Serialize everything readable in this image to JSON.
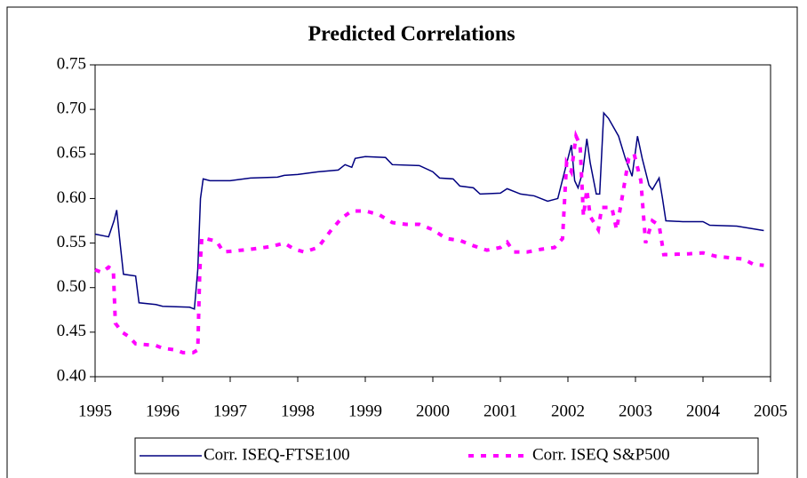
{
  "chart_data": {
    "type": "line",
    "title": "Predicted Correlations",
    "xlim": [
      1995,
      2005
    ],
    "xticks": [
      1995,
      1996,
      1997,
      1998,
      1999,
      2000,
      2001,
      2002,
      2003,
      2004,
      2005
    ],
    "ylim": [
      0.4,
      0.75
    ],
    "yticks": [
      {
        "value": 0.4,
        "label": "0.40"
      },
      0.45,
      {
        "value": 0.5,
        "label": "0.50"
      },
      0.55,
      {
        "value": 0.6,
        "label": "0.60"
      },
      0.65,
      {
        "value": 0.7,
        "label": "0.70"
      },
      0.75
    ],
    "legend": "bottom",
    "series": [
      {
        "name": "Corr. ISEQ-FTSE100",
        "color": "#000080",
        "dash": false,
        "x": [
          1995.0,
          1995.2,
          1995.28,
          1995.32,
          1995.37,
          1995.42,
          1995.6,
          1995.65,
          1995.9,
          1996.0,
          1996.4,
          1996.47,
          1996.52,
          1996.56,
          1996.6,
          1996.7,
          1997.0,
          1997.3,
          1997.7,
          1997.8,
          1998.0,
          1998.3,
          1998.6,
          1998.7,
          1998.8,
          1998.85,
          1999.0,
          1999.3,
          1999.4,
          1999.8,
          2000.0,
          2000.1,
          2000.3,
          2000.4,
          2000.6,
          2000.7,
          2001.0,
          2001.1,
          2001.3,
          2001.5,
          2001.7,
          2001.85,
          2001.95,
          2002.05,
          2002.1,
          2002.15,
          2002.22,
          2002.28,
          2002.33,
          2002.42,
          2002.47,
          2002.53,
          2002.6,
          2002.75,
          2002.85,
          2002.95,
          2003.03,
          2003.1,
          2003.2,
          2003.25,
          2003.35,
          2003.4,
          2003.45,
          2003.7,
          2004.0,
          2004.1,
          2004.5,
          2004.9
        ],
        "values": [
          0.56,
          0.557,
          0.575,
          0.587,
          0.55,
          0.515,
          0.513,
          0.483,
          0.481,
          0.479,
          0.478,
          0.476,
          0.52,
          0.6,
          0.622,
          0.62,
          0.62,
          0.623,
          0.624,
          0.626,
          0.627,
          0.63,
          0.632,
          0.638,
          0.635,
          0.645,
          0.647,
          0.646,
          0.638,
          0.637,
          0.63,
          0.623,
          0.622,
          0.614,
          0.612,
          0.605,
          0.606,
          0.611,
          0.605,
          0.603,
          0.597,
          0.6,
          0.63,
          0.66,
          0.62,
          0.612,
          0.63,
          0.667,
          0.64,
          0.605,
          0.605,
          0.696,
          0.69,
          0.67,
          0.645,
          0.625,
          0.67,
          0.645,
          0.615,
          0.61,
          0.623,
          0.6,
          0.575,
          0.574,
          0.574,
          0.57,
          0.569,
          0.564
        ]
      },
      {
        "name": "Corr. ISEQ S&P500",
        "color": "#ff00ff",
        "dash": true,
        "x": [
          1995.0,
          1995.1,
          1995.2,
          1995.27,
          1995.3,
          1995.4,
          1995.5,
          1995.6,
          1995.9,
          1996.0,
          1996.2,
          1996.3,
          1996.45,
          1996.52,
          1996.55,
          1996.58,
          1996.8,
          1996.9,
          1997.3,
          1997.6,
          1997.8,
          1997.95,
          1998.1,
          1998.3,
          1998.5,
          1998.65,
          1998.8,
          1999.0,
          1999.2,
          1999.4,
          1999.6,
          1999.8,
          2000.0,
          2000.2,
          2000.4,
          2000.6,
          2000.8,
          2001.0,
          2001.1,
          2001.2,
          2001.4,
          2001.6,
          2001.8,
          2001.92,
          2001.98,
          2002.05,
          2002.12,
          2002.18,
          2002.23,
          2002.28,
          2002.33,
          2002.45,
          2002.5,
          2002.65,
          2002.72,
          2002.8,
          2002.9,
          2002.98,
          2003.08,
          2003.15,
          2003.25,
          2003.35,
          2003.42,
          2003.8,
          2004.0,
          2004.2,
          2004.6,
          2004.75,
          2004.9
        ],
        "values": [
          0.52,
          0.517,
          0.523,
          0.52,
          0.46,
          0.45,
          0.445,
          0.437,
          0.435,
          0.432,
          0.43,
          0.427,
          0.427,
          0.43,
          0.52,
          0.556,
          0.552,
          0.54,
          0.543,
          0.546,
          0.55,
          0.543,
          0.54,
          0.545,
          0.565,
          0.578,
          0.586,
          0.586,
          0.582,
          0.573,
          0.571,
          0.571,
          0.565,
          0.555,
          0.553,
          0.547,
          0.542,
          0.545,
          0.551,
          0.54,
          0.54,
          0.543,
          0.545,
          0.555,
          0.64,
          0.63,
          0.67,
          0.66,
          0.58,
          0.61,
          0.58,
          0.565,
          0.59,
          0.59,
          0.565,
          0.6,
          0.645,
          0.65,
          0.62,
          0.55,
          0.575,
          0.57,
          0.537,
          0.538,
          0.539,
          0.535,
          0.532,
          0.526,
          0.525
        ]
      }
    ]
  }
}
